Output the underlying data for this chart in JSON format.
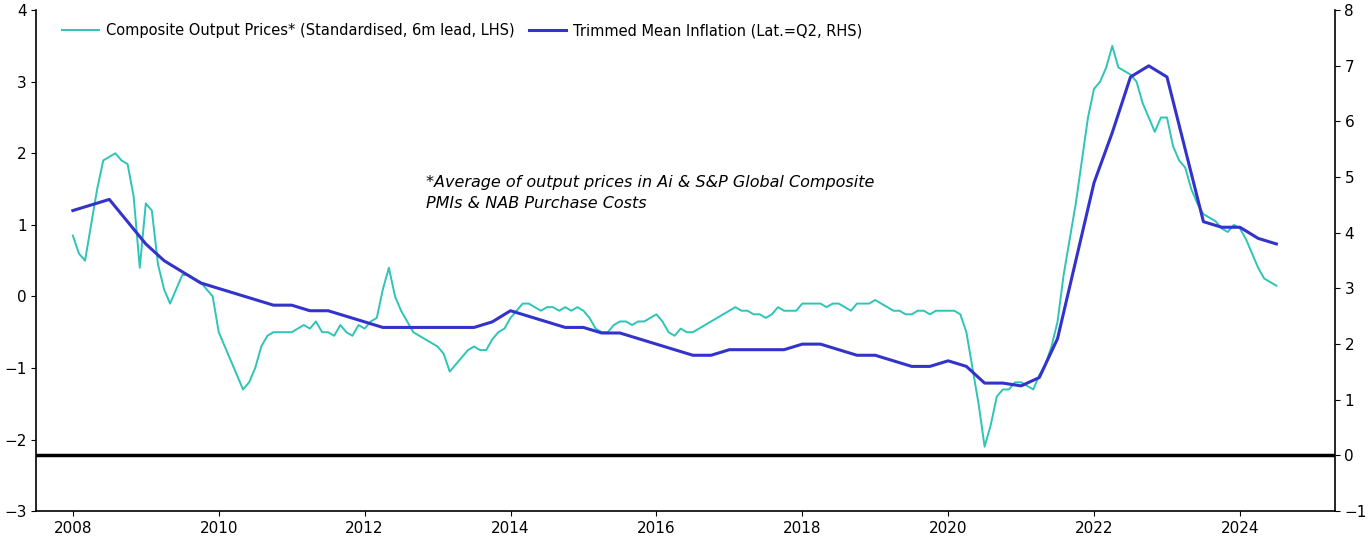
{
  "legend1": "Composite Output Prices* (Standardised, 6m lead, LHS)",
  "legend2": "Trimmed Mean Inflation (Lat.=Q2, RHS)",
  "annotation": "*Average of output prices in Ai & S&P Global Composite\nPMIs & NAB Purchase Costs",
  "lhs_color": "#2EC4B6",
  "rhs_color": "#3333CC",
  "lhs_ylim": [
    -3,
    4
  ],
  "rhs_ylim": [
    -1,
    8
  ],
  "background_color": "#ffffff",
  "composite_x": [
    2008.0,
    2008.083,
    2008.167,
    2008.25,
    2008.333,
    2008.417,
    2008.5,
    2008.583,
    2008.667,
    2008.75,
    2008.833,
    2008.917,
    2009.0,
    2009.083,
    2009.167,
    2009.25,
    2009.333,
    2009.417,
    2009.5,
    2009.583,
    2009.667,
    2009.75,
    2009.833,
    2009.917,
    2010.0,
    2010.083,
    2010.167,
    2010.25,
    2010.333,
    2010.417,
    2010.5,
    2010.583,
    2010.667,
    2010.75,
    2010.833,
    2010.917,
    2011.0,
    2011.083,
    2011.167,
    2011.25,
    2011.333,
    2011.417,
    2011.5,
    2011.583,
    2011.667,
    2011.75,
    2011.833,
    2011.917,
    2012.0,
    2012.083,
    2012.167,
    2012.25,
    2012.333,
    2012.417,
    2012.5,
    2012.583,
    2012.667,
    2012.75,
    2012.833,
    2012.917,
    2013.0,
    2013.083,
    2013.167,
    2013.25,
    2013.333,
    2013.417,
    2013.5,
    2013.583,
    2013.667,
    2013.75,
    2013.833,
    2013.917,
    2014.0,
    2014.083,
    2014.167,
    2014.25,
    2014.333,
    2014.417,
    2014.5,
    2014.583,
    2014.667,
    2014.75,
    2014.833,
    2014.917,
    2015.0,
    2015.083,
    2015.167,
    2015.25,
    2015.333,
    2015.417,
    2015.5,
    2015.583,
    2015.667,
    2015.75,
    2015.833,
    2015.917,
    2016.0,
    2016.083,
    2016.167,
    2016.25,
    2016.333,
    2016.417,
    2016.5,
    2016.583,
    2016.667,
    2016.75,
    2016.833,
    2016.917,
    2017.0,
    2017.083,
    2017.167,
    2017.25,
    2017.333,
    2017.417,
    2017.5,
    2017.583,
    2017.667,
    2017.75,
    2017.833,
    2017.917,
    2018.0,
    2018.083,
    2018.167,
    2018.25,
    2018.333,
    2018.417,
    2018.5,
    2018.583,
    2018.667,
    2018.75,
    2018.833,
    2018.917,
    2019.0,
    2019.083,
    2019.167,
    2019.25,
    2019.333,
    2019.417,
    2019.5,
    2019.583,
    2019.667,
    2019.75,
    2019.833,
    2019.917,
    2020.0,
    2020.083,
    2020.167,
    2020.25,
    2020.333,
    2020.417,
    2020.5,
    2020.583,
    2020.667,
    2020.75,
    2020.833,
    2020.917,
    2021.0,
    2021.083,
    2021.167,
    2021.25,
    2021.333,
    2021.417,
    2021.5,
    2021.583,
    2021.667,
    2021.75,
    2021.833,
    2021.917,
    2022.0,
    2022.083,
    2022.167,
    2022.25,
    2022.333,
    2022.417,
    2022.5,
    2022.583,
    2022.667,
    2022.75,
    2022.833,
    2022.917,
    2023.0,
    2023.083,
    2023.167,
    2023.25,
    2023.333,
    2023.417,
    2023.5,
    2023.583,
    2023.667,
    2023.75,
    2023.833,
    2023.917,
    2024.0,
    2024.083,
    2024.167,
    2024.25,
    2024.333,
    2024.417,
    2024.5
  ],
  "composite_y": [
    0.85,
    0.6,
    0.5,
    1.0,
    1.5,
    1.9,
    1.95,
    2.0,
    1.9,
    1.85,
    1.4,
    0.4,
    1.3,
    1.2,
    0.45,
    0.1,
    -0.1,
    0.1,
    0.3,
    0.3,
    0.25,
    0.2,
    0.1,
    0.0,
    -0.5,
    -0.7,
    -0.9,
    -1.1,
    -1.3,
    -1.2,
    -1.0,
    -0.7,
    -0.55,
    -0.5,
    -0.5,
    -0.5,
    -0.5,
    -0.45,
    -0.4,
    -0.45,
    -0.35,
    -0.5,
    -0.5,
    -0.55,
    -0.4,
    -0.5,
    -0.55,
    -0.4,
    -0.45,
    -0.35,
    -0.3,
    0.1,
    0.4,
    0.0,
    -0.2,
    -0.35,
    -0.5,
    -0.55,
    -0.6,
    -0.65,
    -0.7,
    -0.8,
    -1.05,
    -0.95,
    -0.85,
    -0.75,
    -0.7,
    -0.75,
    -0.75,
    -0.6,
    -0.5,
    -0.45,
    -0.3,
    -0.2,
    -0.1,
    -0.1,
    -0.15,
    -0.2,
    -0.15,
    -0.15,
    -0.2,
    -0.15,
    -0.2,
    -0.15,
    -0.2,
    -0.3,
    -0.45,
    -0.5,
    -0.5,
    -0.4,
    -0.35,
    -0.35,
    -0.4,
    -0.35,
    -0.35,
    -0.3,
    -0.25,
    -0.35,
    -0.5,
    -0.55,
    -0.45,
    -0.5,
    -0.5,
    -0.45,
    -0.4,
    -0.35,
    -0.3,
    -0.25,
    -0.2,
    -0.15,
    -0.2,
    -0.2,
    -0.25,
    -0.25,
    -0.3,
    -0.25,
    -0.15,
    -0.2,
    -0.2,
    -0.2,
    -0.1,
    -0.1,
    -0.1,
    -0.1,
    -0.15,
    -0.1,
    -0.1,
    -0.15,
    -0.2,
    -0.1,
    -0.1,
    -0.1,
    -0.05,
    -0.1,
    -0.15,
    -0.2,
    -0.2,
    -0.25,
    -0.25,
    -0.2,
    -0.2,
    -0.25,
    -0.2,
    -0.2,
    -0.2,
    -0.2,
    -0.25,
    -0.5,
    -1.0,
    -1.5,
    -2.1,
    -1.8,
    -1.4,
    -1.3,
    -1.3,
    -1.2,
    -1.2,
    -1.25,
    -1.3,
    -1.1,
    -0.95,
    -0.7,
    -0.35,
    0.3,
    0.8,
    1.3,
    1.9,
    2.5,
    2.9,
    3.0,
    3.2,
    3.5,
    3.2,
    3.15,
    3.1,
    3.0,
    2.7,
    2.5,
    2.3,
    2.5,
    2.5,
    2.1,
    1.9,
    1.8,
    1.5,
    1.3,
    1.15,
    1.1,
    1.05,
    0.95,
    0.9,
    1.0,
    0.95,
    0.8,
    0.6,
    0.4,
    0.25,
    0.2,
    0.15
  ],
  "trimmed_x": [
    2008.0,
    2008.25,
    2008.5,
    2008.75,
    2009.0,
    2009.25,
    2009.5,
    2009.75,
    2010.0,
    2010.25,
    2010.5,
    2010.75,
    2011.0,
    2011.25,
    2011.5,
    2011.75,
    2012.0,
    2012.25,
    2012.5,
    2012.75,
    2013.0,
    2013.25,
    2013.5,
    2013.75,
    2014.0,
    2014.25,
    2014.5,
    2014.75,
    2015.0,
    2015.25,
    2015.5,
    2015.75,
    2016.0,
    2016.25,
    2016.5,
    2016.75,
    2017.0,
    2017.25,
    2017.5,
    2017.75,
    2018.0,
    2018.25,
    2018.5,
    2018.75,
    2019.0,
    2019.25,
    2019.5,
    2019.75,
    2020.0,
    2020.25,
    2020.5,
    2020.75,
    2021.0,
    2021.25,
    2021.5,
    2021.75,
    2022.0,
    2022.25,
    2022.5,
    2022.75,
    2023.0,
    2023.25,
    2023.5,
    2023.75,
    2024.0,
    2024.25,
    2024.5
  ],
  "trimmed_y": [
    4.4,
    4.5,
    4.6,
    4.2,
    3.8,
    3.5,
    3.3,
    3.1,
    3.0,
    2.9,
    2.8,
    2.7,
    2.7,
    2.6,
    2.6,
    2.5,
    2.4,
    2.3,
    2.3,
    2.3,
    2.3,
    2.3,
    2.3,
    2.4,
    2.6,
    2.5,
    2.4,
    2.3,
    2.3,
    2.2,
    2.2,
    2.1,
    2.0,
    1.9,
    1.8,
    1.8,
    1.9,
    1.9,
    1.9,
    1.9,
    2.0,
    2.0,
    1.9,
    1.8,
    1.8,
    1.7,
    1.6,
    1.6,
    1.7,
    1.6,
    1.3,
    1.3,
    1.25,
    1.4,
    2.1,
    3.5,
    4.9,
    5.8,
    6.8,
    7.0,
    6.8,
    5.5,
    4.2,
    4.1,
    4.1,
    3.9,
    3.8
  ]
}
